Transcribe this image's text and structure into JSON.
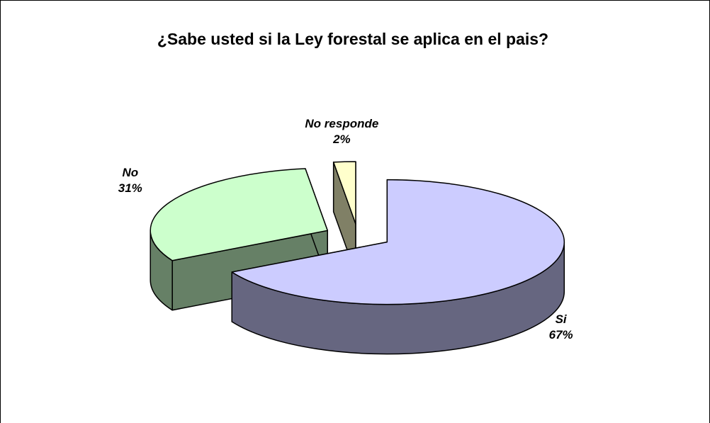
{
  "chart_data": {
    "type": "pie3d",
    "title": "¿Sabe usted si la Ley forestal  se aplica en el pais?",
    "categories": [
      "Si",
      "No",
      "No responde"
    ],
    "values": [
      67,
      31,
      2
    ],
    "value_labels": [
      "67%",
      "31%",
      "2%"
    ],
    "colors": [
      "#ccccff",
      "#ccffcc",
      "#ffffcc"
    ],
    "side_colors": [
      "#666680",
      "#668066",
      "#808066"
    ]
  }
}
